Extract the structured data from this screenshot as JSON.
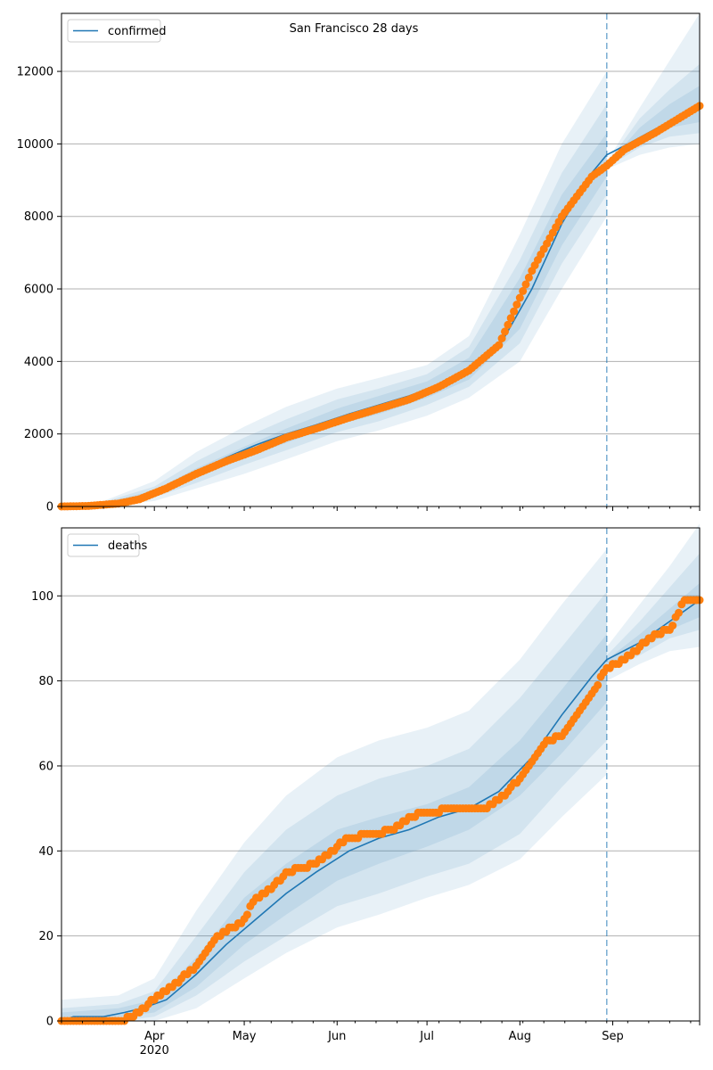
{
  "figure": {
    "title": "San Francisco 28 days"
  },
  "x_axis": {
    "start": "2020-03-01",
    "end": "2020-09-30",
    "forecast_marker": "2020-08-30",
    "tick_labels": [
      {
        "date": "2020-04-01",
        "label": "Apr",
        "sub": "2020"
      },
      {
        "date": "2020-05-01",
        "label": "May",
        "sub": ""
      },
      {
        "date": "2020-06-01",
        "label": "Jun",
        "sub": ""
      },
      {
        "date": "2020-07-01",
        "label": "Jul",
        "sub": ""
      },
      {
        "date": "2020-08-01",
        "label": "Aug",
        "sub": ""
      },
      {
        "date": "2020-09-01",
        "label": "Sep",
        "sub": ""
      }
    ]
  },
  "colors": {
    "model": "#1f77b4",
    "observed": "#ff7f0e",
    "band": "#1f77b4",
    "grid": "#b0b0b0"
  },
  "chart_data": [
    {
      "type": "line",
      "id": "confirmed",
      "legend": "confirmed",
      "ylim": [
        0,
        13600
      ],
      "yticks": [
        0,
        2000,
        4000,
        6000,
        8000,
        10000,
        12000
      ],
      "grid": true,
      "legend_position": "upper-left",
      "model_line": [
        [
          "2020-03-01",
          0
        ],
        [
          "2020-03-10",
          20
        ],
        [
          "2020-03-20",
          100
        ],
        [
          "2020-03-27",
          250
        ],
        [
          "2020-04-05",
          550
        ],
        [
          "2020-04-15",
          950
        ],
        [
          "2020-04-25",
          1350
        ],
        [
          "2020-05-05",
          1700
        ],
        [
          "2020-05-15",
          2000
        ],
        [
          "2020-05-25",
          2250
        ],
        [
          "2020-06-05",
          2550
        ],
        [
          "2020-06-15",
          2800
        ],
        [
          "2020-06-25",
          3050
        ],
        [
          "2020-07-05",
          3350
        ],
        [
          "2020-07-15",
          3750
        ],
        [
          "2020-07-25",
          4400
        ],
        [
          "2020-08-05",
          6000
        ],
        [
          "2020-08-15",
          7800
        ],
        [
          "2020-08-25",
          9200
        ],
        [
          "2020-08-30",
          9700
        ],
        [
          "2020-09-05",
          9950
        ],
        [
          "2020-09-15",
          10400
        ],
        [
          "2020-09-25",
          10850
        ],
        [
          "2020-09-30",
          11100
        ]
      ],
      "observed": [
        [
          "2020-03-01",
          0
        ],
        [
          "2020-03-10",
          15
        ],
        [
          "2020-03-20",
          80
        ],
        [
          "2020-03-27",
          200
        ],
        [
          "2020-04-05",
          500
        ],
        [
          "2020-04-15",
          900
        ],
        [
          "2020-04-25",
          1250
        ],
        [
          "2020-05-05",
          1550
        ],
        [
          "2020-05-15",
          1900
        ],
        [
          "2020-05-25",
          2150
        ],
        [
          "2020-06-05",
          2450
        ],
        [
          "2020-06-15",
          2700
        ],
        [
          "2020-06-25",
          2950
        ],
        [
          "2020-07-05",
          3300
        ],
        [
          "2020-07-15",
          3750
        ],
        [
          "2020-07-25",
          4450
        ],
        [
          "2020-08-05",
          6500
        ],
        [
          "2020-08-15",
          8000
        ],
        [
          "2020-08-25",
          9100
        ],
        [
          "2020-08-30",
          9400
        ],
        [
          "2020-09-05",
          9850
        ],
        [
          "2020-09-15",
          10300
        ],
        [
          "2020-09-25",
          10800
        ],
        [
          "2020-09-30",
          11050
        ]
      ],
      "bands": [
        {
          "dates": [
            "2020-03-01",
            "2020-03-15",
            "2020-04-01",
            "2020-04-15",
            "2020-05-01",
            "2020-05-15",
            "2020-06-01",
            "2020-06-15",
            "2020-07-01",
            "2020-07-15",
            "2020-08-01",
            "2020-08-15",
            "2020-08-30"
          ],
          "lo": [
            0,
            0,
            150,
            500,
            900,
            1300,
            1800,
            2100,
            2500,
            3000,
            4000,
            6000,
            8000
          ],
          "hi": [
            50,
            150,
            700,
            1500,
            2200,
            2750,
            3250,
            3550,
            3900,
            4700,
            7500,
            10000,
            12000
          ]
        },
        {
          "dates": [
            "2020-03-01",
            "2020-03-15",
            "2020-04-01",
            "2020-04-15",
            "2020-05-01",
            "2020-05-15",
            "2020-06-01",
            "2020-06-15",
            "2020-07-01",
            "2020-07-15",
            "2020-08-01",
            "2020-08-15",
            "2020-08-30"
          ],
          "lo": [
            0,
            0,
            250,
            650,
            1150,
            1550,
            2050,
            2350,
            2800,
            3300,
            4500,
            6700,
            8600
          ],
          "hi": [
            30,
            120,
            550,
            1250,
            1900,
            2400,
            2950,
            3250,
            3650,
            4400,
            6800,
            9200,
            11100
          ]
        },
        {
          "dates": [
            "2020-03-01",
            "2020-03-15",
            "2020-04-01",
            "2020-04-15",
            "2020-05-01",
            "2020-05-15",
            "2020-06-01",
            "2020-06-15",
            "2020-07-01",
            "2020-07-15",
            "2020-08-01",
            "2020-08-15",
            "2020-08-30"
          ],
          "lo": [
            0,
            10,
            350,
            800,
            1350,
            1750,
            2250,
            2550,
            3000,
            3500,
            4900,
            7200,
            9100
          ],
          "hi": [
            20,
            90,
            450,
            1050,
            1650,
            2150,
            2700,
            3050,
            3450,
            4100,
            6300,
            8600,
            10300
          ]
        },
        {
          "dates": [
            "2020-08-30",
            "2020-09-10",
            "2020-09-20",
            "2020-09-30"
          ],
          "lo": [
            9300,
            9700,
            9900,
            10000
          ],
          "hi": [
            9500,
            11000,
            12300,
            13600
          ]
        },
        {
          "dates": [
            "2020-08-30",
            "2020-09-10",
            "2020-09-20",
            "2020-09-30"
          ],
          "lo": [
            9350,
            9900,
            10200,
            10300
          ],
          "hi": [
            9450,
            10700,
            11500,
            12200
          ]
        },
        {
          "dates": [
            "2020-08-30",
            "2020-09-10",
            "2020-09-20",
            "2020-09-30"
          ],
          "lo": [
            9380,
            10050,
            10450,
            10600
          ],
          "hi": [
            9420,
            10450,
            11100,
            11600
          ]
        }
      ]
    },
    {
      "type": "line",
      "id": "deaths",
      "legend": "deaths",
      "ylim": [
        0,
        116
      ],
      "yticks": [
        0,
        20,
        40,
        60,
        80,
        100
      ],
      "grid": true,
      "legend_position": "upper-left",
      "model_line": [
        [
          "2020-03-01",
          0
        ],
        [
          "2020-03-05",
          1
        ],
        [
          "2020-03-15",
          1
        ],
        [
          "2020-03-22",
          2
        ],
        [
          "2020-03-28",
          3
        ],
        [
          "2020-04-05",
          5
        ],
        [
          "2020-04-15",
          11
        ],
        [
          "2020-04-25",
          18
        ],
        [
          "2020-05-05",
          24
        ],
        [
          "2020-05-15",
          30
        ],
        [
          "2020-05-25",
          35
        ],
        [
          "2020-06-05",
          40
        ],
        [
          "2020-06-15",
          43
        ],
        [
          "2020-06-25",
          45
        ],
        [
          "2020-07-05",
          48
        ],
        [
          "2020-07-15",
          50
        ],
        [
          "2020-07-25",
          54
        ],
        [
          "2020-08-05",
          62
        ],
        [
          "2020-08-15",
          72
        ],
        [
          "2020-08-25",
          81
        ],
        [
          "2020-08-30",
          85
        ],
        [
          "2020-09-10",
          89
        ],
        [
          "2020-09-20",
          94
        ],
        [
          "2020-09-30",
          99
        ]
      ],
      "observed": [
        [
          "2020-03-01",
          0
        ],
        [
          "2020-03-20",
          0
        ],
        [
          "2020-03-25",
          1
        ],
        [
          "2020-03-30",
          4
        ],
        [
          "2020-04-05",
          7
        ],
        [
          "2020-04-15",
          13
        ],
        [
          "2020-04-22",
          20
        ],
        [
          "2020-04-30",
          23
        ],
        [
          "2020-05-05",
          29
        ],
        [
          "2020-05-10",
          31
        ],
        [
          "2020-05-15",
          35
        ],
        [
          "2020-05-25",
          37
        ],
        [
          "2020-06-01",
          41
        ],
        [
          "2020-06-05",
          43
        ],
        [
          "2020-06-20",
          45
        ],
        [
          "2020-06-25",
          48
        ],
        [
          "2020-07-01",
          49
        ],
        [
          "2020-07-10",
          50
        ],
        [
          "2020-07-20",
          50
        ],
        [
          "2020-07-25",
          52
        ],
        [
          "2020-08-01",
          57
        ],
        [
          "2020-08-05",
          61
        ],
        [
          "2020-08-10",
          66
        ],
        [
          "2020-08-15",
          67
        ],
        [
          "2020-08-20",
          72
        ],
        [
          "2020-08-25",
          77
        ],
        [
          "2020-08-30",
          83
        ],
        [
          "2020-09-05",
          85
        ],
        [
          "2020-09-15",
          91
        ],
        [
          "2020-09-20",
          92
        ],
        [
          "2020-09-25",
          99
        ],
        [
          "2020-09-30",
          99
        ]
      ],
      "bands": [
        {
          "dates": [
            "2020-03-01",
            "2020-03-20",
            "2020-04-01",
            "2020-04-15",
            "2020-05-01",
            "2020-05-15",
            "2020-06-01",
            "2020-06-15",
            "2020-07-01",
            "2020-07-15",
            "2020-08-01",
            "2020-08-15",
            "2020-08-30"
          ],
          "lo": [
            0,
            0,
            0,
            3,
            10,
            16,
            22,
            25,
            29,
            32,
            38,
            48,
            58
          ],
          "hi": [
            5,
            6,
            10,
            26,
            42,
            53,
            62,
            66,
            69,
            73,
            85,
            98,
            111
          ]
        },
        {
          "dates": [
            "2020-03-01",
            "2020-03-20",
            "2020-04-01",
            "2020-04-15",
            "2020-05-01",
            "2020-05-15",
            "2020-06-01",
            "2020-06-15",
            "2020-07-01",
            "2020-07-15",
            "2020-08-01",
            "2020-08-15",
            "2020-08-30"
          ],
          "lo": [
            0,
            0,
            1,
            6,
            14,
            20,
            27,
            30,
            34,
            37,
            44,
            55,
            66
          ],
          "hi": [
            3,
            4,
            7,
            20,
            35,
            45,
            53,
            57,
            60,
            64,
            76,
            88,
            101
          ]
        },
        {
          "dates": [
            "2020-03-01",
            "2020-03-20",
            "2020-04-01",
            "2020-04-15",
            "2020-05-01",
            "2020-05-15",
            "2020-06-01",
            "2020-06-15",
            "2020-07-01",
            "2020-07-15",
            "2020-08-01",
            "2020-08-15",
            "2020-08-30"
          ],
          "lo": [
            0,
            1,
            2,
            8,
            18,
            25,
            33,
            37,
            41,
            45,
            53,
            63,
            75
          ],
          "hi": [
            2,
            3,
            5,
            15,
            29,
            37,
            45,
            48,
            51,
            55,
            66,
            78,
            91
          ]
        },
        {
          "dates": [
            "2020-08-30",
            "2020-09-10",
            "2020-09-20",
            "2020-09-30"
          ],
          "lo": [
            80,
            84,
            87,
            88
          ],
          "hi": [
            88,
            98,
            107,
            117
          ]
        },
        {
          "dates": [
            "2020-08-30",
            "2020-09-10",
            "2020-09-20",
            "2020-09-30"
          ],
          "lo": [
            82,
            86,
            90,
            92
          ],
          "hi": [
            86,
            94,
            102,
            110
          ]
        },
        {
          "dates": [
            "2020-08-30",
            "2020-09-10",
            "2020-09-20",
            "2020-09-30"
          ],
          "lo": [
            83,
            87,
            92,
            95
          ],
          "hi": [
            85,
            91,
            97,
            103
          ]
        }
      ]
    }
  ]
}
